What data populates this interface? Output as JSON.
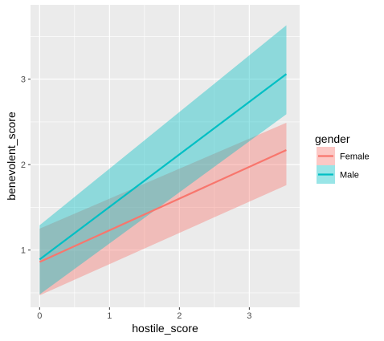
{
  "chart_data": {
    "type": "line",
    "xlabel": "hostile_score",
    "ylabel": "benevolent_score",
    "xlim": [
      -0.13,
      3.72
    ],
    "ylim": [
      0.33,
      3.87
    ],
    "x_ticks": [
      "0",
      "1",
      "2",
      "3"
    ],
    "y_ticks": [
      "1",
      "2",
      "3"
    ],
    "grid": true,
    "legend": {
      "title": "gender",
      "position": "right"
    },
    "series": [
      {
        "name": "Female",
        "color": "#F8766D",
        "x": [
          0,
          3.53
        ],
        "y": [
          0.86,
          2.17
        ],
        "ci_upper": [
          1.25,
          2.49
        ],
        "ci_lower": [
          0.47,
          1.76
        ]
      },
      {
        "name": "Male",
        "color": "#00BFC4",
        "x": [
          0,
          3.53
        ],
        "y": [
          0.89,
          3.06
        ],
        "ci_upper": [
          1.29,
          3.63
        ],
        "ci_lower": [
          0.48,
          2.59
        ]
      }
    ]
  }
}
